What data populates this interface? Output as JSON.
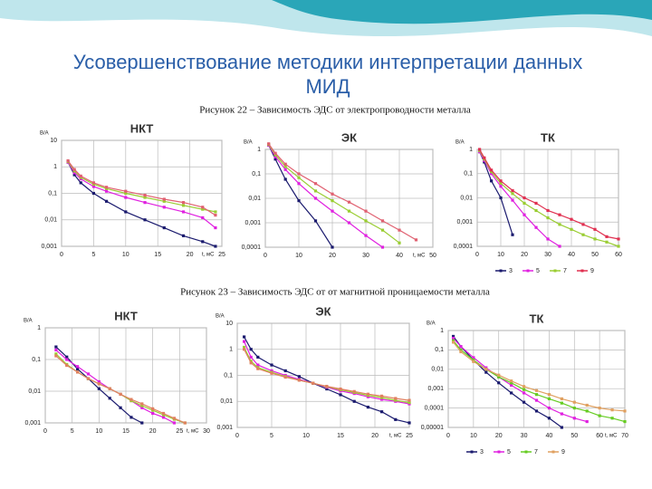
{
  "title_lines": [
    "Усовершенствование методики интерпретации данных",
    "МИД"
  ],
  "captions": [
    "Рисунок 22 – Зависимость ЭДС от электропроводности металла",
    "Рисунок 23 – Зависимость ЭДС от от магнитной проницаемости металла"
  ],
  "chart_data": [
    {
      "type": "line",
      "title": "НКТ",
      "y_label": "В/А",
      "x_label": "t, мС",
      "log_scale": true,
      "grid": true,
      "x": [
        1,
        2,
        3,
        5,
        7,
        10,
        13,
        16,
        19,
        22,
        24
      ],
      "xlim": [
        0,
        25
      ],
      "xticks": [
        0,
        5,
        10,
        15,
        20,
        25
      ],
      "ylim": [
        0.001,
        10
      ],
      "yticks": [
        10,
        1,
        {
          "value": 0.1,
          "label": "0,1"
        },
        {
          "value": 0.01,
          "label": "0,01"
        },
        {
          "value": 0.001,
          "label": "0,001"
        }
      ],
      "series": [
        {
          "color": "#1a1a6e",
          "values": [
            1.5,
            0.5,
            0.25,
            0.1,
            0.05,
            0.02,
            0.01,
            0.005,
            0.0025,
            0.0015,
            0.001
          ]
        },
        {
          "color": "#e020e0",
          "values": [
            1.5,
            0.6,
            0.35,
            0.18,
            0.12,
            0.07,
            0.045,
            0.03,
            0.02,
            0.012,
            0.005
          ]
        },
        {
          "color": "#9acd32",
          "values": [
            1.6,
            0.7,
            0.4,
            0.22,
            0.15,
            0.1,
            0.07,
            0.05,
            0.035,
            0.025,
            0.02
          ]
        },
        {
          "color": "#e06070",
          "values": [
            1.7,
            0.8,
            0.45,
            0.25,
            0.17,
            0.12,
            0.085,
            0.06,
            0.045,
            0.03,
            0.015
          ]
        }
      ]
    },
    {
      "type": "line",
      "title": "ЭК",
      "y_label": "В/А",
      "x_label": "t, мС",
      "log_scale": true,
      "grid": true,
      "x": [
        1,
        3,
        6,
        10,
        15,
        20,
        25,
        30,
        35,
        40,
        45
      ],
      "xlim": [
        0,
        50
      ],
      "xticks": [
        0,
        10,
        20,
        30,
        40,
        50
      ],
      "ylim": [
        0.0001,
        1
      ],
      "yticks": [
        1,
        {
          "value": 0.1,
          "label": "0,1"
        },
        {
          "value": 0.01,
          "label": "0,01"
        },
        {
          "value": 0.001,
          "label": "0,001"
        },
        {
          "value": 0.0001,
          "label": "0,0001"
        }
      ],
      "series": [
        {
          "color": "#1a1a6e",
          "values": [
            1.5,
            0.4,
            0.06,
            0.008,
            0.0012,
            0.0001,
            null,
            null,
            null,
            null,
            null
          ]
        },
        {
          "color": "#e020e0",
          "values": [
            1.5,
            0.5,
            0.15,
            0.04,
            0.01,
            0.003,
            0.001,
            0.0003,
            0.0001,
            null,
            null
          ]
        },
        {
          "color": "#9acd32",
          "values": [
            1.6,
            0.6,
            0.2,
            0.07,
            0.02,
            0.008,
            0.003,
            0.0012,
            0.0005,
            0.00015,
            null
          ]
        },
        {
          "color": "#e06070",
          "values": [
            1.7,
            0.7,
            0.25,
            0.1,
            0.04,
            0.015,
            0.007,
            0.003,
            0.0012,
            0.0005,
            0.0002
          ]
        }
      ]
    },
    {
      "type": "line",
      "title": "ТК",
      "y_label": "В/А",
      "log_scale": true,
      "grid": true,
      "x": [
        1,
        3,
        6,
        10,
        15,
        20,
        25,
        30,
        35,
        40,
        45,
        50,
        55,
        60
      ],
      "xlim": [
        0,
        60
      ],
      "xticks": [
        0,
        10,
        20,
        30,
        40,
        50,
        60
      ],
      "ylim": [
        0.0001,
        1
      ],
      "yticks": [
        1,
        {
          "value": 0.1,
          "label": "0,1"
        },
        {
          "value": 0.01,
          "label": "0,01"
        },
        {
          "value": 0.001,
          "label": "0,001"
        },
        {
          "value": 0.0001,
          "label": "0,0001"
        }
      ],
      "series": [
        {
          "name": "3",
          "color": "#1a1a6e",
          "values": [
            0.8,
            0.3,
            0.05,
            0.01,
            0.0003,
            null,
            null,
            null,
            null,
            null,
            null,
            null,
            null,
            null
          ]
        },
        {
          "name": "5",
          "color": "#e020e0",
          "values": [
            0.8,
            0.35,
            0.1,
            0.03,
            0.008,
            0.002,
            0.0006,
            0.0002,
            0.0001,
            null,
            null,
            null,
            null,
            null
          ]
        },
        {
          "name": "7",
          "color": "#9acd32",
          "values": [
            0.9,
            0.4,
            0.12,
            0.04,
            0.015,
            0.006,
            0.003,
            0.0015,
            0.0008,
            0.0005,
            0.0003,
            0.0002,
            0.00015,
            0.0001
          ]
        },
        {
          "name": "9",
          "color": "#e03050",
          "values": [
            1,
            0.45,
            0.14,
            0.05,
            0.02,
            0.01,
            0.006,
            0.003,
            0.002,
            0.0013,
            0.0008,
            0.0005,
            0.00025,
            0.0002
          ]
        }
      ]
    },
    {
      "type": "line",
      "title": "НКТ",
      "y_label": "В/А",
      "x_label": "t, мС",
      "log_scale": true,
      "grid": true,
      "x": [
        2,
        4,
        6,
        8,
        10,
        12,
        14,
        16,
        18,
        20,
        22,
        24,
        26
      ],
      "xlim": [
        0,
        30
      ],
      "xticks": [
        0,
        5,
        10,
        15,
        20,
        25,
        30
      ],
      "ylim": [
        0.001,
        1
      ],
      "yticks": [
        1,
        {
          "value": 0.1,
          "label": "0,1"
        },
        {
          "value": 0.01,
          "label": "0,01"
        },
        {
          "value": 0.001,
          "label": "0,001"
        }
      ],
      "series": [
        {
          "color": "#1a1a6e",
          "values": [
            0.25,
            0.12,
            0.05,
            0.025,
            0.012,
            0.006,
            0.003,
            0.0015,
            0.001,
            null,
            null,
            null,
            null
          ]
        },
        {
          "color": "#e020e0",
          "values": [
            0.2,
            0.1,
            0.06,
            0.035,
            0.02,
            0.012,
            0.008,
            0.005,
            0.003,
            0.002,
            0.0015,
            0.001,
            null
          ]
        },
        {
          "color": "#9acd32",
          "values": [
            0.15,
            0.07,
            0.04,
            0.025,
            0.017,
            0.012,
            0.008,
            0.005,
            0.0035,
            0.0025,
            0.0018,
            0.0013,
            0.001
          ]
        },
        {
          "color": "#e08060",
          "values": [
            0.13,
            0.065,
            0.04,
            0.025,
            0.017,
            0.012,
            0.008,
            0.0055,
            0.004,
            0.0028,
            0.002,
            0.0014,
            0.001
          ]
        }
      ]
    },
    {
      "type": "line",
      "title": "ЭК",
      "y_label": "В/А",
      "x_label": "t, мС",
      "log_scale": true,
      "grid": true,
      "x": [
        1,
        2,
        3,
        5,
        7,
        9,
        11,
        13,
        15,
        17,
        19,
        21,
        23,
        25
      ],
      "xlim": [
        0,
        25
      ],
      "xticks": [
        0,
        5,
        10,
        15,
        20,
        25
      ],
      "ylim": [
        0.001,
        10
      ],
      "yticks": [
        10,
        1,
        {
          "value": 0.1,
          "label": "0,1"
        },
        {
          "value": 0.01,
          "label": "0,01"
        },
        {
          "value": 0.001,
          "label": "0,001"
        }
      ],
      "series": [
        {
          "color": "#1a1a6e",
          "values": [
            3,
            1,
            0.5,
            0.25,
            0.15,
            0.09,
            0.05,
            0.03,
            0.018,
            0.01,
            0.006,
            0.004,
            0.002,
            0.0015
          ]
        },
        {
          "color": "#e020e0",
          "values": [
            2,
            0.5,
            0.25,
            0.15,
            0.1,
            0.07,
            0.05,
            0.035,
            0.025,
            0.02,
            0.015,
            0.012,
            0.01,
            0.008
          ]
        },
        {
          "color": "#9acd32",
          "values": [
            1.2,
            0.35,
            0.2,
            0.13,
            0.09,
            0.065,
            0.05,
            0.037,
            0.028,
            0.022,
            0.017,
            0.014,
            0.011,
            0.009
          ]
        },
        {
          "color": "#e08060",
          "values": [
            1,
            0.3,
            0.18,
            0.12,
            0.085,
            0.065,
            0.05,
            0.038,
            0.03,
            0.024,
            0.019,
            0.016,
            0.013,
            0.011
          ]
        }
      ]
    },
    {
      "type": "line",
      "title": "ТК",
      "y_label": "В/А",
      "x_label": "t, мС",
      "log_scale": true,
      "grid": true,
      "x": [
        2,
        5,
        10,
        15,
        20,
        25,
        30,
        35,
        40,
        45,
        50,
        55,
        60,
        65,
        70
      ],
      "xlim": [
        0,
        70
      ],
      "xticks": [
        0,
        10,
        20,
        30,
        40,
        50,
        60,
        70
      ],
      "ylim": [
        1e-05,
        1
      ],
      "yticks": [
        1,
        {
          "value": 0.1,
          "label": "0,1"
        },
        {
          "value": 0.01,
          "label": "0,01"
        },
        {
          "value": 0.001,
          "label": "0,001"
        },
        {
          "value": 0.0001,
          "label": "0,0001"
        },
        {
          "value": 1e-05,
          "label": "0,00001"
        }
      ],
      "series": [
        {
          "name": "3",
          "color": "#1a1a6e",
          "values": [
            0.5,
            0.15,
            0.03,
            0.007,
            0.002,
            0.0006,
            0.0002,
            7e-05,
            3e-05,
            1e-05,
            null,
            null,
            null,
            null,
            null
          ]
        },
        {
          "name": "5",
          "color": "#e020e0",
          "values": [
            0.4,
            0.15,
            0.04,
            0.012,
            0.004,
            0.0015,
            0.0006,
            0.00025,
            0.0001,
            5e-05,
            3e-05,
            2e-05,
            null,
            null,
            null
          ]
        },
        {
          "name": "7",
          "color": "#66cc22",
          "values": [
            0.3,
            0.1,
            0.03,
            0.01,
            0.004,
            0.002,
            0.0009,
            0.0005,
            0.0003,
            0.00018,
            0.0001,
            7e-05,
            4e-05,
            3e-05,
            2e-05
          ]
        },
        {
          "name": "9",
          "color": "#e0a060",
          "values": [
            0.25,
            0.08,
            0.025,
            0.01,
            0.005,
            0.0025,
            0.0013,
            0.0008,
            0.0005,
            0.0003,
            0.0002,
            0.00014,
            0.0001,
            8e-05,
            7e-05
          ]
        }
      ]
    }
  ]
}
